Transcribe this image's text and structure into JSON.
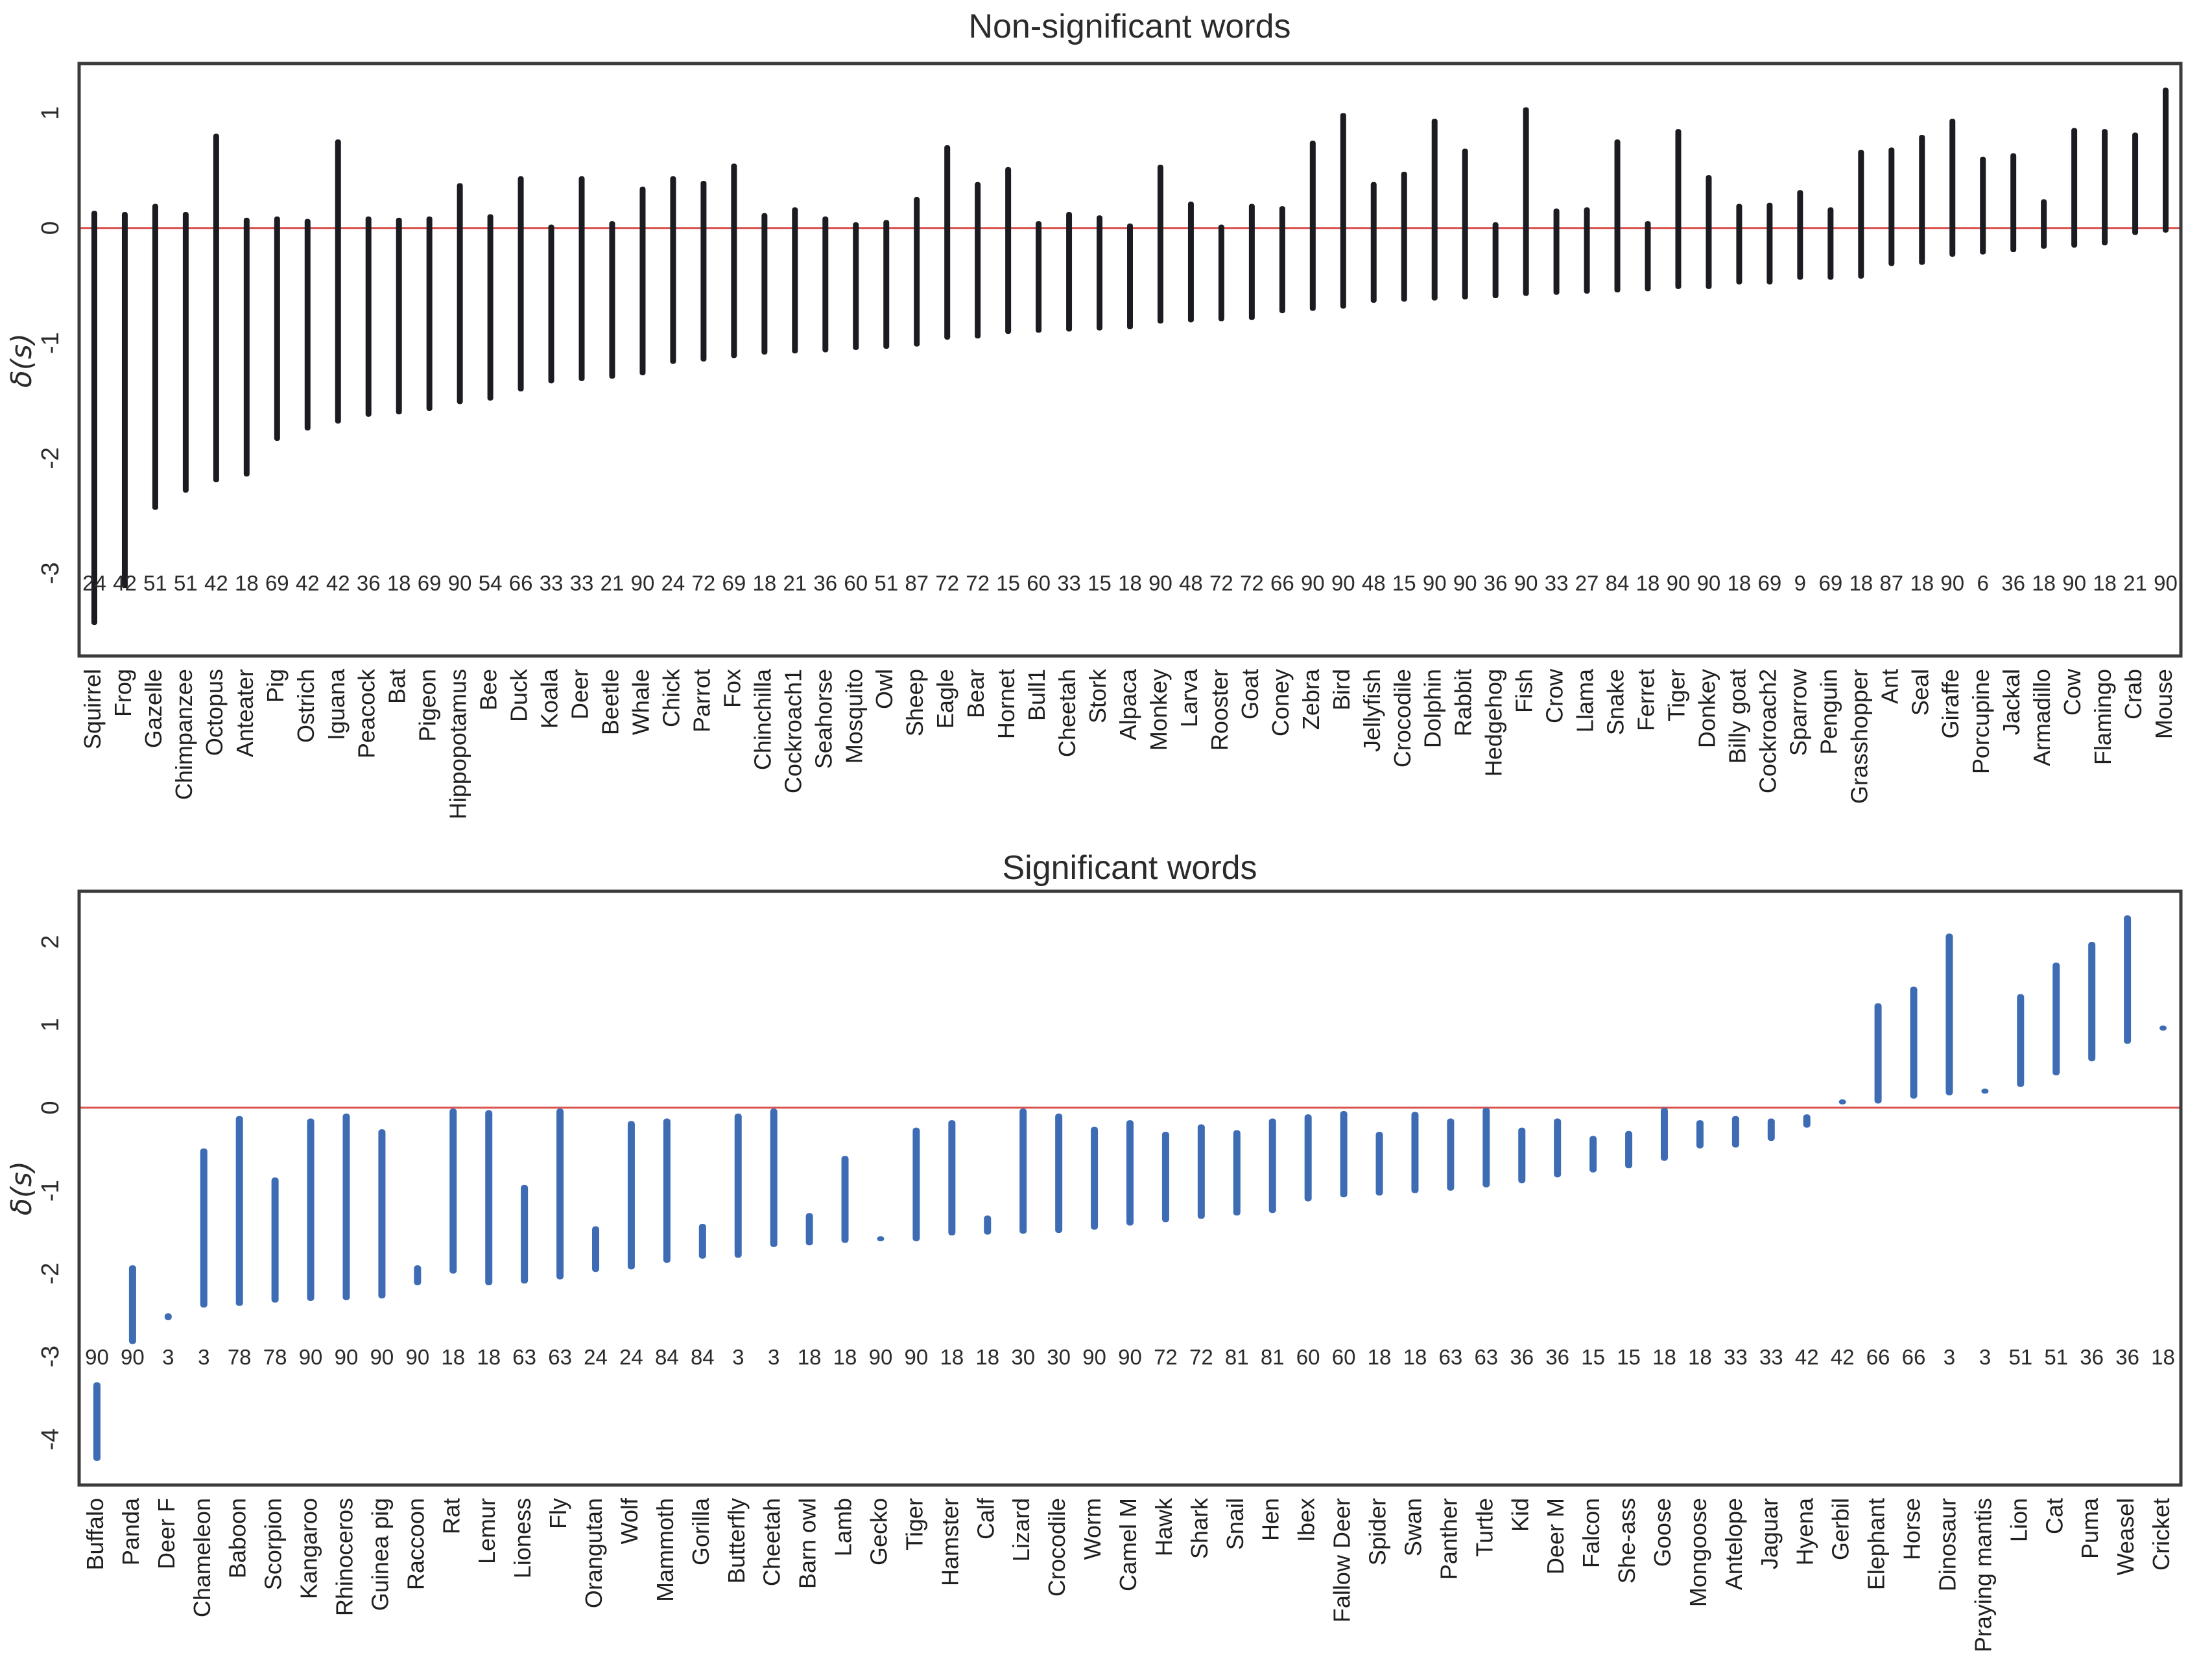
{
  "figure": {
    "background": "#ffffff",
    "frame_color": "#3b3b3b",
    "text_color": "#2b2b2b"
  },
  "chart_data": [
    {
      "type": "rangebar",
      "title": "Non-significant words",
      "ylabel": "δ(s)",
      "bar_color": "#1b1b22",
      "zero_line_color": "#d9534f",
      "ylim": [
        -3.72,
        1.43
      ],
      "yticks": [
        1,
        0,
        -1,
        -2,
        -3
      ],
      "grid": false,
      "legend": "none",
      "categories": [
        "Squirrel",
        "Frog",
        "Gazelle",
        "Chimpanzee",
        "Octopus",
        "Anteater",
        "Pig",
        "Ostrich",
        "Iguana",
        "Peacock",
        "Bat",
        "Pigeon",
        "Hippopotamus",
        "Bee",
        "Duck",
        "Koala",
        "Deer",
        "Beetle",
        "Whale",
        "Chick",
        "Parrot",
        "Fox",
        "Chinchilla",
        "Cockroach1",
        "Seahorse",
        "Mosquito",
        "Owl",
        "Sheep",
        "Eagle",
        "Bear",
        "Hornet",
        "Bull1",
        "Cheetah",
        "Stork",
        "Alpaca",
        "Monkey",
        "Larva",
        "Rooster",
        "Goat",
        "Coney",
        "Zebra",
        "Bird",
        "Jellyfish",
        "Crocodile",
        "Dolphin",
        "Rabbit",
        "Hedgehog",
        "Fish",
        "Crow",
        "Llama",
        "Snake",
        "Ferret",
        "Tiger",
        "Donkey",
        "Billy goat",
        "Cockroach2",
        "Sparrow",
        "Penguin",
        "Grasshopper",
        "Ant",
        "Seal",
        "Giraffe",
        "Porcupine",
        "Jackal",
        "Armadillo",
        "Cow",
        "Flamingo",
        "Crab",
        "Mouse"
      ],
      "counts": [
        24,
        42,
        51,
        51,
        42,
        18,
        69,
        42,
        42,
        36,
        18,
        69,
        90,
        54,
        66,
        33,
        33,
        21,
        90,
        24,
        72,
        69,
        18,
        21,
        36,
        60,
        51,
        87,
        72,
        72,
        15,
        60,
        33,
        15,
        18,
        90,
        48,
        72,
        72,
        66,
        90,
        90,
        48,
        15,
        90,
        90,
        36,
        90,
        33,
        27,
        84,
        18,
        90,
        90,
        18,
        69,
        9,
        69,
        18,
        87,
        18,
        90,
        6,
        36,
        18,
        90,
        18,
        21,
        90
      ],
      "ranges": [
        [
          -3.45,
          0.15
        ],
        [
          -3.13,
          0.14
        ],
        [
          -2.45,
          0.21
        ],
        [
          -2.3,
          0.14
        ],
        [
          -2.21,
          0.82
        ],
        [
          -2.16,
          0.09
        ],
        [
          -1.85,
          0.1
        ],
        [
          -1.76,
          0.08
        ],
        [
          -1.7,
          0.77
        ],
        [
          -1.64,
          0.1
        ],
        [
          -1.62,
          0.09
        ],
        [
          -1.59,
          0.1
        ],
        [
          -1.53,
          0.39
        ],
        [
          -1.5,
          0.12
        ],
        [
          -1.42,
          0.45
        ],
        [
          -1.35,
          0.03
        ],
        [
          -1.33,
          0.45
        ],
        [
          -1.31,
          0.06
        ],
        [
          -1.28,
          0.36
        ],
        [
          -1.18,
          0.45
        ],
        [
          -1.16,
          0.41
        ],
        [
          -1.13,
          0.56
        ],
        [
          -1.1,
          0.13
        ],
        [
          -1.09,
          0.18
        ],
        [
          -1.08,
          0.1
        ],
        [
          -1.06,
          0.05
        ],
        [
          -1.05,
          0.07
        ],
        [
          -1.03,
          0.27
        ],
        [
          -0.97,
          0.72
        ],
        [
          -0.96,
          0.4
        ],
        [
          -0.92,
          0.53
        ],
        [
          -0.91,
          0.06
        ],
        [
          -0.9,
          0.14
        ],
        [
          -0.89,
          0.11
        ],
        [
          -0.88,
          0.04
        ],
        [
          -0.83,
          0.55
        ],
        [
          -0.82,
          0.23
        ],
        [
          -0.81,
          0.03
        ],
        [
          -0.8,
          0.21
        ],
        [
          -0.74,
          0.19
        ],
        [
          -0.72,
          0.76
        ],
        [
          -0.7,
          1.0
        ],
        [
          -0.65,
          0.4
        ],
        [
          -0.64,
          0.49
        ],
        [
          -0.63,
          0.95
        ],
        [
          -0.62,
          0.69
        ],
        [
          -0.61,
          0.05
        ],
        [
          -0.59,
          1.05
        ],
        [
          -0.58,
          0.17
        ],
        [
          -0.57,
          0.18
        ],
        [
          -0.56,
          0.77
        ],
        [
          -0.55,
          0.06
        ],
        [
          -0.53,
          0.86
        ],
        [
          -0.53,
          0.46
        ],
        [
          -0.49,
          0.21
        ],
        [
          -0.49,
          0.22
        ],
        [
          -0.45,
          0.33
        ],
        [
          -0.45,
          0.18
        ],
        [
          -0.44,
          0.68
        ],
        [
          -0.33,
          0.7
        ],
        [
          -0.32,
          0.81
        ],
        [
          -0.25,
          0.95
        ],
        [
          -0.23,
          0.62
        ],
        [
          -0.21,
          0.65
        ],
        [
          -0.18,
          0.25
        ],
        [
          -0.17,
          0.87
        ],
        [
          -0.15,
          0.86
        ],
        [
          -0.06,
          0.83
        ],
        [
          -0.04,
          1.22
        ]
      ]
    },
    {
      "type": "rangebar",
      "title": "Significant words",
      "ylabel": "δ(s)",
      "bar_color": "#3d6cb4",
      "zero_line_color": "#d9534f",
      "ylim": [
        -4.55,
        2.61
      ],
      "yticks": [
        2,
        1,
        0,
        -1,
        -2,
        -3,
        -4
      ],
      "grid": false,
      "legend": "none",
      "categories": [
        "Buffalo",
        "Panda",
        "Deer F",
        "Chameleon",
        "Baboon",
        "Scorpion",
        "Kangaroo",
        "Rhinoceros",
        "Guinea pig",
        "Raccoon",
        "Rat",
        "Lemur",
        "Lioness",
        "Fly",
        "Orangutan",
        "Wolf",
        "Mammoth",
        "Gorilla",
        "Butterfly",
        "Cheetah",
        "Barn owl",
        "Lamb",
        "Gecko",
        "Tiger",
        "Hamster",
        "Calf",
        "Lizard",
        "Crocodile",
        "Worm",
        "Camel M",
        "Hawk",
        "Shark",
        "Snail",
        "Hen",
        "Ibex",
        "Fallow Deer",
        "Spider",
        "Swan",
        "Panther",
        "Turtle",
        "Kid",
        "Deer M",
        "Falcon",
        "She-ass",
        "Goose",
        "Mongoose",
        "Antelope",
        "Jaguar",
        "Hyena",
        "Gerbil",
        "Elephant",
        "Horse",
        "Dinosaur",
        "Praying mantis",
        "Lion",
        "Cat",
        "Puma",
        "Weasel",
        "Cricket"
      ],
      "counts": [
        90,
        90,
        3,
        3,
        78,
        78,
        90,
        90,
        90,
        90,
        18,
        18,
        63,
        63,
        24,
        24,
        84,
        84,
        3,
        3,
        18,
        18,
        90,
        90,
        18,
        18,
        30,
        30,
        90,
        90,
        72,
        72,
        81,
        81,
        60,
        60,
        18,
        18,
        63,
        63,
        36,
        36,
        15,
        15,
        18,
        18,
        33,
        33,
        42,
        42,
        66,
        66,
        3,
        3,
        51,
        51,
        36,
        36,
        18
      ],
      "ranges": [
        [
          -4.26,
          -3.31
        ],
        [
          -2.85,
          -1.9
        ],
        [
          -2.56,
          -2.48
        ],
        [
          -2.41,
          -0.49
        ],
        [
          -2.39,
          -0.1
        ],
        [
          -2.35,
          -0.84
        ],
        [
          -2.33,
          -0.13
        ],
        [
          -2.32,
          -0.07
        ],
        [
          -2.3,
          -0.26
        ],
        [
          -2.14,
          -1.9
        ],
        [
          -2.0,
          -0.01
        ],
        [
          -2.14,
          -0.03
        ],
        [
          -2.12,
          -0.93
        ],
        [
          -2.07,
          -0.01
        ],
        [
          -1.98,
          -1.43
        ],
        [
          -1.95,
          -0.16
        ],
        [
          -1.87,
          -0.13
        ],
        [
          -1.82,
          -1.4
        ],
        [
          -1.81,
          -0.07
        ],
        [
          -1.68,
          -0.01
        ],
        [
          -1.66,
          -1.27
        ],
        [
          -1.63,
          -0.58
        ],
        [
          -1.61,
          -1.55
        ],
        [
          -1.61,
          -0.24
        ],
        [
          -1.54,
          -0.15
        ],
        [
          -1.53,
          -1.3
        ],
        [
          -1.52,
          -0.01
        ],
        [
          -1.51,
          -0.07
        ],
        [
          -1.47,
          -0.23
        ],
        [
          -1.42,
          -0.15
        ],
        [
          -1.38,
          -0.29
        ],
        [
          -1.34,
          -0.2
        ],
        [
          -1.3,
          -0.27
        ],
        [
          -1.27,
          -0.13
        ],
        [
          -1.13,
          -0.08
        ],
        [
          -1.08,
          -0.04
        ],
        [
          -1.06,
          -0.29
        ],
        [
          -1.03,
          -0.05
        ],
        [
          -1.0,
          -0.13
        ],
        [
          -0.96,
          0.0
        ],
        [
          -0.91,
          -0.24
        ],
        [
          -0.84,
          -0.13
        ],
        [
          -0.78,
          -0.34
        ],
        [
          -0.73,
          -0.28
        ],
        [
          -0.64,
          0.0
        ],
        [
          -0.49,
          -0.15
        ],
        [
          -0.48,
          -0.1
        ],
        [
          -0.4,
          -0.13
        ],
        [
          -0.24,
          -0.08
        ],
        [
          0.04,
          0.1
        ],
        [
          0.05,
          1.26
        ],
        [
          0.11,
          1.46
        ],
        [
          0.15,
          2.1
        ],
        [
          0.17,
          0.23
        ],
        [
          0.25,
          1.37
        ],
        [
          0.39,
          1.75
        ],
        [
          0.56,
          2.0
        ],
        [
          0.77,
          2.32
        ],
        [
          0.93,
          0.99
        ]
      ]
    }
  ]
}
